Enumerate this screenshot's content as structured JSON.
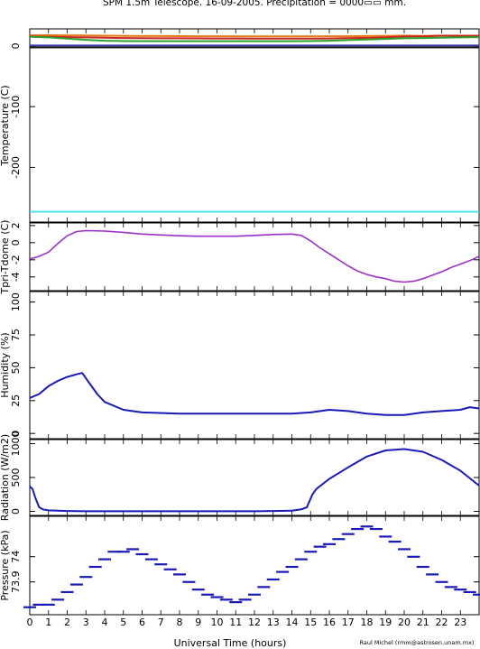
{
  "figure": {
    "title": "SPM 1.5m Telescope. 16-09-2005. Precipitation = 0000▭▭ mm.",
    "credit": "Raul Michel (rmm@astrosen.unam.mx)",
    "xlabel": "Universal Time (hours)",
    "xlim": [
      0,
      24
    ],
    "xticks": [
      "0",
      "1",
      "2",
      "3",
      "4",
      "5",
      "6",
      "7",
      "8",
      "9",
      "10",
      "11",
      "12",
      "13",
      "14",
      "15",
      "16",
      "17",
      "18",
      "19",
      "20",
      "21",
      "22",
      "23"
    ]
  },
  "chart_data": [
    {
      "type": "line",
      "ylabel": "Temperature (C)",
      "ylim": [
        -290,
        28
      ],
      "yticks": [
        0,
        -100,
        -200
      ],
      "x": [
        0,
        1,
        2,
        3,
        4,
        5,
        6,
        7,
        8,
        9,
        10,
        11,
        12,
        13,
        14,
        15,
        16,
        17,
        18,
        19,
        20,
        21,
        22,
        23,
        24
      ],
      "series": [
        {
          "color": "#e87a1e",
          "values": [
            17.5,
            17.6,
            17.4,
            17.2,
            16.8,
            16.5,
            16.3,
            16.2,
            16.1,
            16.0,
            15.9,
            15.8,
            15.8,
            15.8,
            15.8,
            15.8,
            15.9,
            16.0,
            16.2,
            16.6,
            16.8,
            16.6,
            16.8,
            16.8,
            16.8
          ]
        },
        {
          "color": "#c8261f",
          "values": [
            15.5,
            15.0,
            14.5,
            14.0,
            13.5,
            13.0,
            12.8,
            12.6,
            12.5,
            12.4,
            12.3,
            12.2,
            12.1,
            12.0,
            12.0,
            12.0,
            12.3,
            12.8,
            13.3,
            14.0,
            15.5,
            15.5,
            16.8,
            16.6,
            16.5
          ]
        },
        {
          "color": "#2ca02c",
          "values": [
            15.0,
            14.0,
            12.0,
            10.0,
            8.5,
            8.0,
            7.8,
            7.8,
            7.8,
            7.8,
            7.8,
            7.8,
            7.8,
            7.8,
            7.8,
            8.0,
            8.5,
            9.5,
            10.5,
            11.5,
            12.5,
            13.0,
            13.5,
            14.0,
            14.5
          ]
        },
        {
          "color": "#3a3aa8",
          "values": [
            0.6,
            0.6,
            0.6,
            0.6,
            0.6,
            0.6,
            0.6,
            0.6,
            0.6,
            0.6,
            0.6,
            0.6,
            0.6,
            0.6,
            0.6,
            0.6,
            0.6,
            0.6,
            0.6,
            0.6,
            0.6,
            0.6,
            0.6,
            0.6,
            0.6
          ]
        },
        {
          "color": "#101010",
          "values": [
            -2.4,
            -2.4,
            -2.4,
            -2.4,
            -2.4,
            -2.4,
            -2.4,
            -2.4,
            -2.4,
            -2.4,
            -2.4,
            -2.4,
            -2.4,
            -2.4,
            -2.4,
            -2.4,
            -2.4,
            -2.4,
            -2.4,
            -2.4,
            -2.4,
            -2.4,
            -2.4,
            -2.4,
            -2.4
          ]
        },
        {
          "color": "#4fe3e3",
          "values": [
            -273,
            -273,
            -273,
            -273,
            -273,
            -273,
            -273,
            -273,
            -273,
            -273,
            -273,
            -273,
            -273,
            -273,
            -273,
            -273,
            -273,
            -273,
            -273,
            -273,
            -273,
            -273,
            -273,
            -273,
            -273
          ]
        }
      ]
    },
    {
      "type": "line",
      "ylabel": "Tpri-Tdome (C)",
      "ylim": [
        -5.6,
        2.3
      ],
      "yticks": [
        2,
        0,
        -2,
        -4
      ],
      "x": [
        0,
        0.5,
        1,
        1.5,
        2,
        2.5,
        3,
        4,
        5,
        6,
        7,
        8,
        9,
        10,
        11,
        12,
        13,
        14,
        14.5,
        15,
        15.5,
        16,
        16.5,
        17,
        17.5,
        18,
        18.5,
        19,
        19.5,
        20,
        20.5,
        21,
        21.5,
        22,
        22.5,
        23,
        23.5,
        24
      ],
      "series": [
        {
          "color": "#9b30c8",
          "values": [
            -1.9,
            -1.6,
            -1.1,
            -0.1,
            0.8,
            1.3,
            1.4,
            1.35,
            1.2,
            1.0,
            0.9,
            0.8,
            0.75,
            0.75,
            0.75,
            0.85,
            0.95,
            1.0,
            0.85,
            0.2,
            -0.6,
            -1.3,
            -2.0,
            -2.7,
            -3.3,
            -3.7,
            -4.0,
            -4.2,
            -4.5,
            -4.6,
            -4.5,
            -4.2,
            -3.8,
            -3.4,
            -2.9,
            -2.5,
            -2.1,
            -1.6
          ]
        }
      ]
    },
    {
      "type": "line",
      "ylabel": "Humidity (%)",
      "ylim": [
        -4,
        108
      ],
      "yticks": [
        0,
        25,
        50,
        75,
        100
      ],
      "x": [
        0,
        0.5,
        1,
        1.5,
        2,
        2.5,
        2.8,
        3.2,
        3.6,
        4,
        5,
        6,
        8,
        10,
        12,
        14,
        15,
        16,
        17,
        18,
        19,
        20,
        21,
        22,
        23,
        23.5,
        24
      ],
      "series": [
        {
          "color": "#1a1ab8",
          "values": [
            27,
            30,
            36,
            40,
            43,
            45,
            46,
            38,
            30,
            24,
            18,
            16,
            15,
            15,
            15,
            15,
            16,
            18,
            17,
            15,
            14,
            14,
            16,
            17,
            18,
            20,
            19
          ]
        }
      ]
    },
    {
      "type": "line",
      "ylabel": "Radiation (W/m2)",
      "ylim": [
        -60,
        1060
      ],
      "yticks": [
        0,
        500,
        1000
      ],
      "x": [
        0,
        0.15,
        0.3,
        0.5,
        0.7,
        1,
        2,
        3,
        4,
        6,
        8,
        10,
        12,
        13,
        14,
        14.5,
        14.8,
        15.1,
        15.3,
        16,
        17,
        18,
        19,
        20,
        21,
        22,
        23,
        24
      ],
      "series": [
        {
          "color": "#1a1ab8",
          "values": [
            370,
            330,
            200,
            60,
            30,
            15,
            5,
            2,
            2,
            2,
            2,
            2,
            2,
            5,
            10,
            30,
            60,
            250,
            330,
            480,
            650,
            810,
            900,
            920,
            880,
            760,
            600,
            380
          ]
        }
      ]
    },
    {
      "type": "scatter",
      "ylabel": "Pressure (kPa)",
      "ylim": [
        73.77,
        74.16
      ],
      "yticks": [
        "74",
        "73.9"
      ],
      "x": [
        0,
        0.5,
        1,
        1.5,
        2,
        2.5,
        3,
        3.5,
        4,
        4.5,
        5,
        5.5,
        6,
        6.5,
        7,
        7.5,
        8,
        8.5,
        9,
        9.5,
        10,
        10.5,
        11,
        11.5,
        12,
        12.5,
        13,
        13.5,
        14,
        14.5,
        15,
        15.5,
        16,
        16.5,
        17,
        17.5,
        18,
        18.5,
        19,
        19.5,
        20,
        20.5,
        21,
        21.5,
        22,
        22.5,
        23,
        23.5,
        24
      ],
      "series": [
        {
          "color": "#1a1ab8",
          "values": [
            73.8,
            73.81,
            73.81,
            73.83,
            73.86,
            73.89,
            73.92,
            73.96,
            73.99,
            74.02,
            74.02,
            74.03,
            74.01,
            73.99,
            73.97,
            73.95,
            73.93,
            73.9,
            73.87,
            73.85,
            73.84,
            73.83,
            73.82,
            73.83,
            73.85,
            73.88,
            73.91,
            73.94,
            73.96,
            73.99,
            74.02,
            74.04,
            74.05,
            74.07,
            74.09,
            74.11,
            74.12,
            74.11,
            74.08,
            74.06,
            74.03,
            74.0,
            73.96,
            73.93,
            73.9,
            73.88,
            73.87,
            73.86,
            73.85
          ]
        }
      ]
    }
  ]
}
